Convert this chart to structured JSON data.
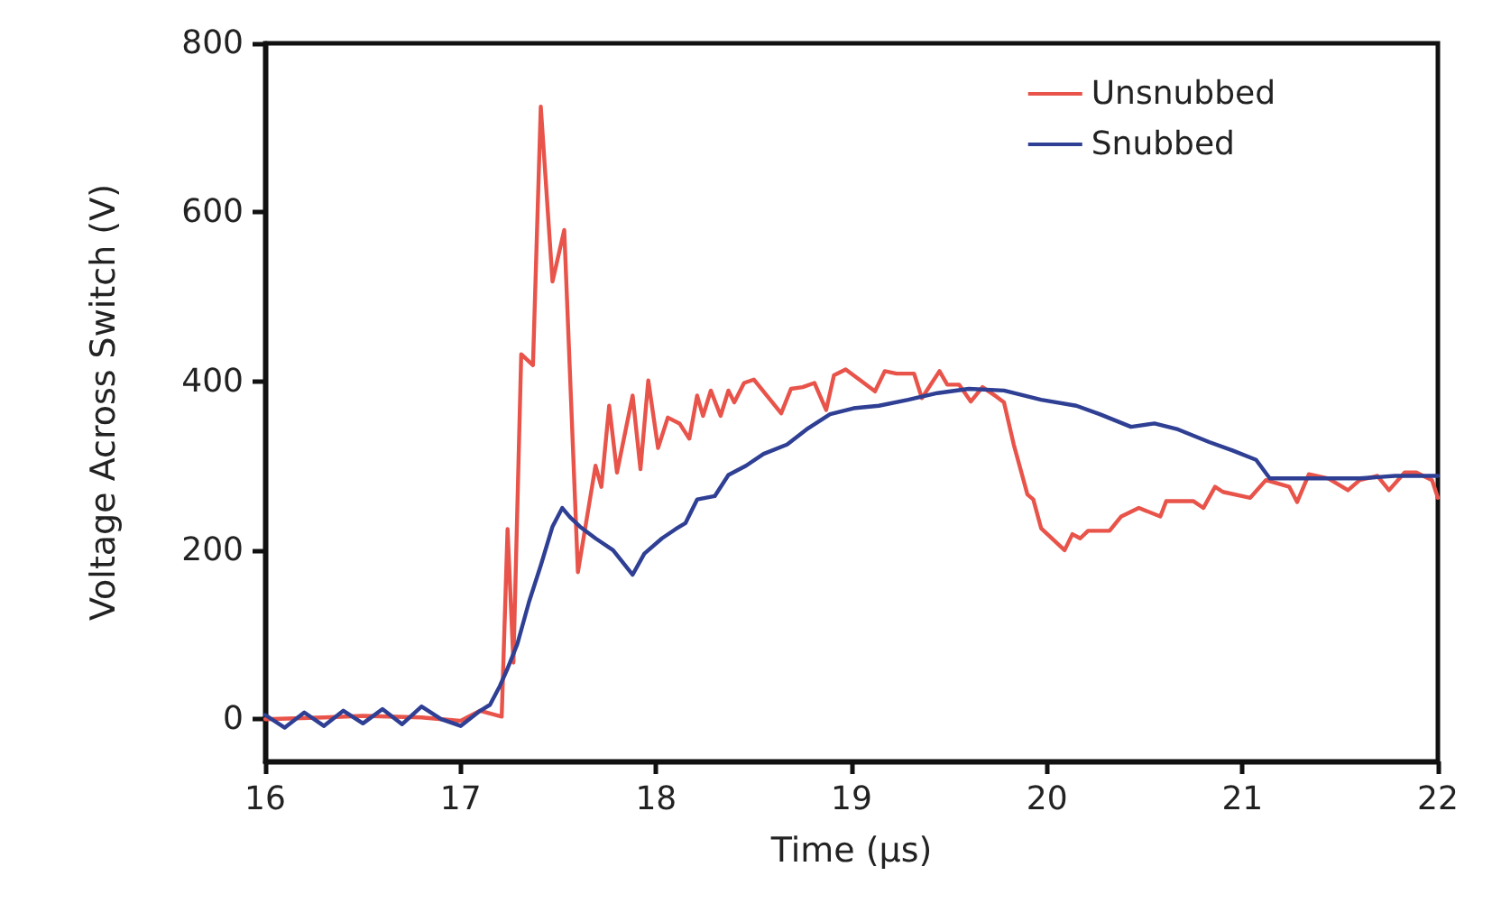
{
  "chart_data": {
    "type": "line",
    "xlabel": "Time (μs)",
    "ylabel": "Voltage Across Switch (V)",
    "xlim": [
      16,
      22
    ],
    "xticks": [
      16,
      17,
      18,
      19,
      20,
      21,
      22
    ],
    "ylim": [
      -50,
      800
    ],
    "yticks": [
      0,
      200,
      400,
      600,
      800
    ],
    "grid": false,
    "legend": "top right",
    "marker": "none",
    "line_style": "solid",
    "series": [
      {
        "name": "Unsnubbed",
        "color": "#e8534a",
        "x": [
          16.0,
          16.3,
          16.5,
          16.8,
          17.0,
          17.1,
          17.21,
          17.24,
          17.27,
          17.31,
          17.37,
          17.41,
          17.47,
          17.53,
          17.6,
          17.69,
          17.72,
          17.76,
          17.8,
          17.88,
          17.92,
          17.96,
          18.01,
          18.06,
          18.12,
          18.17,
          18.21,
          18.24,
          18.28,
          18.33,
          18.37,
          18.4,
          18.45,
          18.5,
          18.57,
          18.64,
          18.69,
          18.75,
          18.81,
          18.87,
          18.91,
          18.97,
          19.04,
          19.12,
          19.17,
          19.23,
          19.32,
          19.36,
          19.45,
          19.49,
          19.55,
          19.61,
          19.67,
          19.74,
          19.78,
          19.83,
          19.9,
          19.93,
          19.97,
          20.09,
          20.13,
          20.17,
          20.21,
          20.32,
          20.38,
          20.47,
          20.58,
          20.61,
          20.75,
          20.8,
          20.86,
          20.9,
          21.04,
          21.12,
          21.24,
          21.28,
          21.34,
          21.44,
          21.54,
          21.6,
          21.69,
          21.75,
          21.83,
          21.89,
          21.97,
          22.0
        ],
        "values": [
          0,
          2,
          4,
          2,
          -2,
          10,
          3,
          225,
          67,
          432,
          419,
          725,
          518,
          579,
          174,
          300,
          275,
          371,
          292,
          383,
          296,
          401,
          321,
          357,
          350,
          332,
          383,
          359,
          389,
          359,
          389,
          375,
          398,
          402,
          382,
          362,
          391,
          393,
          398,
          366,
          407,
          414,
          402,
          388,
          412,
          409,
          409,
          380,
          412,
          396,
          396,
          376,
          393,
          382,
          375,
          325,
          266,
          260,
          226,
          200,
          219,
          214,
          223,
          223,
          240,
          250,
          240,
          258,
          258,
          250,
          275,
          269,
          262,
          283,
          275,
          257,
          290,
          285,
          271,
          283,
          288,
          271,
          292,
          292,
          283,
          262
        ]
      },
      {
        "name": "Snubbed",
        "color": "#2e3f94",
        "x": [
          16.0,
          16.1,
          16.2,
          16.3,
          16.4,
          16.5,
          16.6,
          16.7,
          16.8,
          16.9,
          17.0,
          17.1,
          17.15,
          17.2,
          17.24,
          17.29,
          17.35,
          17.41,
          17.47,
          17.52,
          17.56,
          17.61,
          17.69,
          17.78,
          17.88,
          17.94,
          18.03,
          18.1,
          18.15,
          18.21,
          18.3,
          18.37,
          18.46,
          18.55,
          18.67,
          18.77,
          18.89,
          19.01,
          19.14,
          19.29,
          19.44,
          19.6,
          19.78,
          19.97,
          20.15,
          20.27,
          20.43,
          20.55,
          20.67,
          20.83,
          20.95,
          21.07,
          21.14,
          21.26,
          21.41,
          21.6,
          21.78,
          22.0
        ],
        "values": [
          5,
          -10,
          8,
          -8,
          10,
          -5,
          12,
          -6,
          15,
          0,
          -8,
          10,
          17,
          39,
          60,
          89,
          139,
          182,
          228,
          250,
          239,
          228,
          214,
          200,
          171,
          196,
          214,
          225,
          232,
          260,
          264,
          289,
          300,
          314,
          325,
          343,
          361,
          368,
          371,
          378,
          386,
          391,
          389,
          378,
          371,
          361,
          346,
          350,
          343,
          328,
          318,
          307,
          285,
          285,
          285,
          285,
          288,
          288
        ]
      }
    ]
  }
}
